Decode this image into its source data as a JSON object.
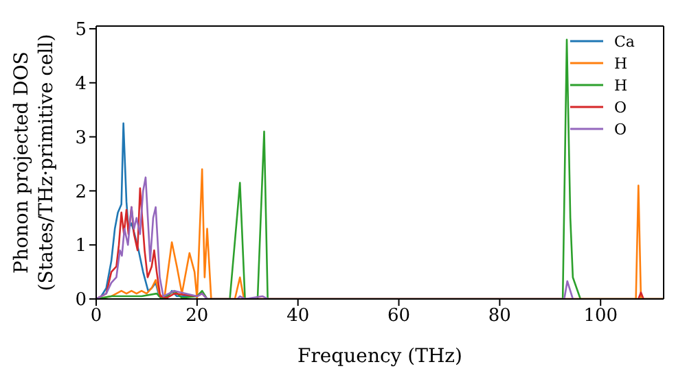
{
  "chart_data": {
    "type": "line",
    "xlabel": "Frequency (THz)",
    "ylabel": "Phonon projected DOS\n(States/THz·primitive cell)",
    "xlim": [
      0,
      112.5
    ],
    "xticks": [
      0,
      20,
      40,
      60,
      80,
      100
    ],
    "ylim": [
      0,
      5.05
    ],
    "yticks": [
      0,
      1,
      2,
      3,
      4,
      5
    ],
    "legend": "top right",
    "marker": "none",
    "line_style": "solid",
    "series": [
      {
        "name": "Ca",
        "color": "#1f77b4",
        "x": [
          0,
          1,
          2,
          3,
          3.7,
          4.3,
          5,
          5.4,
          6,
          6.4,
          7,
          7.6,
          8.4,
          9.3,
          10.3,
          11,
          11.8,
          12.5,
          14,
          15,
          16,
          20,
          21
        ],
        "values": [
          0,
          0.05,
          0.2,
          0.7,
          1.3,
          1.6,
          1.75,
          3.25,
          1.8,
          1.3,
          1.4,
          1.2,
          0.9,
          0.5,
          0.15,
          0.2,
          0.3,
          0.05,
          0.02,
          0.15,
          0.05,
          0.05,
          0.12
        ]
      },
      {
        "name": "H",
        "color": "#ff7f0e",
        "x": [
          0,
          3,
          4,
          5,
          6,
          7,
          8,
          9,
          10,
          11,
          11.8,
          12.5,
          13.5,
          15,
          16,
          17,
          18.5,
          19.5,
          20,
          21,
          21.5,
          22,
          22.8,
          27.5,
          28.5,
          29.3,
          107,
          107.5,
          108,
          112.5
        ],
        "values": [
          0,
          0.05,
          0.1,
          0.15,
          0.1,
          0.15,
          0.1,
          0.15,
          0.1,
          0.2,
          0.35,
          0.1,
          0,
          1.05,
          0.6,
          0.1,
          0.85,
          0.5,
          0,
          2.4,
          0.4,
          1.3,
          0,
          0,
          0.4,
          0,
          0,
          2.1,
          0,
          0
        ]
      },
      {
        "name": "H",
        "color": "#2ca02c",
        "x": [
          0,
          3,
          6,
          9,
          12,
          13,
          15.5,
          17,
          20,
          21,
          22,
          26.5,
          28,
          28.5,
          29.5,
          32,
          33,
          33.3,
          34,
          92.5,
          93.3,
          94,
          94.5,
          96,
          112.5
        ],
        "values": [
          0,
          0.05,
          0.05,
          0.05,
          0.1,
          0,
          0.15,
          0.02,
          0.05,
          0.15,
          0,
          0,
          1.6,
          2.15,
          0,
          0,
          2.4,
          3.1,
          0,
          0,
          4.8,
          1.5,
          0.4,
          0,
          0
        ]
      },
      {
        "name": "O",
        "color": "#d62728",
        "x": [
          0,
          2,
          3,
          3.5,
          4,
          4.5,
          5,
          5.5,
          6,
          6.4,
          7,
          7.5,
          8.2,
          8.7,
          9.2,
          9.6,
          10.2,
          11,
          11.5,
          12,
          12.7,
          14,
          15.5,
          20,
          21,
          22,
          107.5,
          108,
          108.5,
          112.5
        ],
        "values": [
          0,
          0.1,
          0.5,
          0.55,
          0.6,
          1.0,
          1.6,
          1.2,
          1.65,
          1.2,
          1.7,
          1.2,
          0.9,
          2.05,
          1.4,
          0.9,
          0.4,
          0.6,
          0.9,
          0.5,
          0.05,
          0.02,
          0.1,
          0.05,
          0.1,
          0,
          0,
          0.12,
          0,
          0
        ]
      },
      {
        "name": "O",
        "color": "#9467bd",
        "x": [
          0,
          2,
          3,
          4,
          4.7,
          5.1,
          5.6,
          6.3,
          7,
          7.5,
          8,
          8.7,
          9.3,
          9.8,
          10.3,
          10.7,
          11.3,
          11.8,
          12.6,
          13.3,
          15.5,
          20,
          21,
          22,
          28,
          28.5,
          29.5,
          33,
          34,
          92.8,
          93.4,
          94.5
        ],
        "values": [
          0,
          0.1,
          0.3,
          0.4,
          0.9,
          0.8,
          1.3,
          1.0,
          1.7,
          1.3,
          1.5,
          1.2,
          2.0,
          2.25,
          1.4,
          0.7,
          1.5,
          1.7,
          0.4,
          0.05,
          0.15,
          0.05,
          0.1,
          0,
          0,
          0.05,
          0,
          0.05,
          0,
          0,
          0.33,
          0
        ]
      }
    ]
  }
}
